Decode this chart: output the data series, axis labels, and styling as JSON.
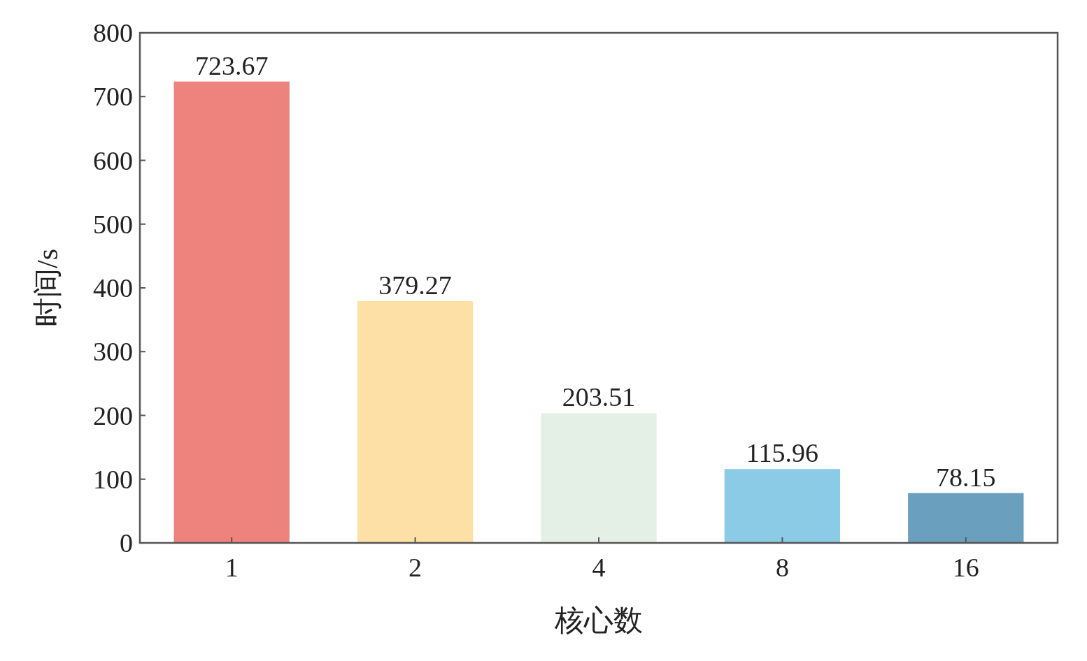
{
  "chart_data": {
    "type": "bar",
    "xlabel": "核心数",
    "ylabel": "时间/s",
    "categories": [
      "1",
      "2",
      "4",
      "8",
      "16"
    ],
    "values": [
      723.67,
      379.27,
      203.51,
      115.96,
      78.15
    ],
    "colors": [
      "#ee827c",
      "#fde0a6",
      "#e4f0e6",
      "#8ccbe6",
      "#6a9fbe"
    ],
    "ylim": [
      0,
      800
    ],
    "yticks": [
      0,
      100,
      200,
      300,
      400,
      500,
      600,
      700,
      800
    ],
    "data_labels": true,
    "grid": false
  }
}
